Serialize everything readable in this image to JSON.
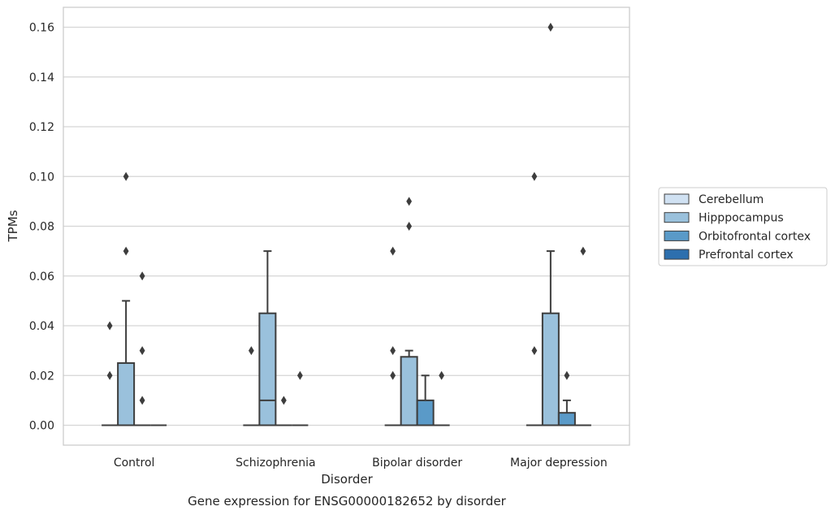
{
  "caption": "Gene expression for ENSG00000182652 by disorder",
  "chart_data": {
    "type": "box",
    "title": "",
    "xlabel": "Disorder",
    "ylabel": "TPMs",
    "ylim": [
      -0.008,
      0.168
    ],
    "yticks": [
      0.0,
      0.02,
      0.04,
      0.06,
      0.08,
      0.1,
      0.12,
      0.14,
      0.16
    ],
    "ytick_labels": [
      "0.00",
      "0.02",
      "0.04",
      "0.06",
      "0.08",
      "0.10",
      "0.12",
      "0.14",
      "0.16"
    ],
    "grid": "horizontal",
    "legend_position": "outside-right",
    "categories": [
      "Control",
      "Schizophrenia",
      "Bipolar disorder",
      "Major depression"
    ],
    "series": [
      {
        "name": "Cerebellum",
        "color": "#d0e1f2",
        "boxes": [
          {
            "q1": 0,
            "median": 0,
            "q3": 0,
            "whisker_low": 0,
            "whisker_high": 0,
            "outliers": [
              0.02,
              0.04
            ]
          },
          {
            "q1": 0,
            "median": 0,
            "q3": 0,
            "whisker_low": 0,
            "whisker_high": 0,
            "outliers": [
              0.03
            ]
          },
          {
            "q1": 0,
            "median": 0,
            "q3": 0,
            "whisker_low": 0,
            "whisker_high": 0,
            "outliers": [
              0.02,
              0.03,
              0.07
            ]
          },
          {
            "q1": 0,
            "median": 0,
            "q3": 0,
            "whisker_low": 0,
            "whisker_high": 0,
            "outliers": [
              0.03,
              0.1
            ]
          }
        ]
      },
      {
        "name": "Hipppocampus",
        "color": "#9ac1dc",
        "boxes": [
          {
            "q1": 0,
            "median": 0,
            "q3": 0.025,
            "whisker_low": 0,
            "whisker_high": 0.05,
            "outliers": [
              0.07,
              0.1
            ]
          },
          {
            "q1": 0,
            "median": 0.01,
            "q3": 0.045,
            "whisker_low": 0,
            "whisker_high": 0.07,
            "outliers": []
          },
          {
            "q1": 0,
            "median": 0,
            "q3": 0.0275,
            "whisker_low": 0,
            "whisker_high": 0.03,
            "outliers": [
              0.08,
              0.09
            ]
          },
          {
            "q1": 0,
            "median": 0,
            "q3": 0.045,
            "whisker_low": 0,
            "whisker_high": 0.07,
            "outliers": [
              0.16
            ]
          }
        ]
      },
      {
        "name": "Orbitofrontal cortex",
        "color": "#5a9ac8",
        "boxes": [
          {
            "q1": 0,
            "median": 0,
            "q3": 0,
            "whisker_low": 0,
            "whisker_high": 0,
            "outliers": [
              0.01,
              0.03,
              0.06
            ]
          },
          {
            "q1": 0,
            "median": 0,
            "q3": 0,
            "whisker_low": 0,
            "whisker_high": 0,
            "outliers": [
              0.01
            ]
          },
          {
            "q1": 0,
            "median": 0,
            "q3": 0.01,
            "whisker_low": 0,
            "whisker_high": 0.02,
            "outliers": []
          },
          {
            "q1": 0,
            "median": 0,
            "q3": 0.005,
            "whisker_low": 0,
            "whisker_high": 0.01,
            "outliers": [
              0.02
            ]
          }
        ]
      },
      {
        "name": "Prefrontal cortex",
        "color": "#2d6fae",
        "boxes": [
          {
            "q1": 0,
            "median": 0,
            "q3": 0,
            "whisker_low": 0,
            "whisker_high": 0,
            "outliers": []
          },
          {
            "q1": 0,
            "median": 0,
            "q3": 0,
            "whisker_low": 0,
            "whisker_high": 0,
            "outliers": [
              0.02
            ]
          },
          {
            "q1": 0,
            "median": 0,
            "q3": 0,
            "whisker_low": 0,
            "whisker_high": 0,
            "outliers": [
              0.02
            ]
          },
          {
            "q1": 0,
            "median": 0,
            "q3": 0,
            "whisker_low": 0,
            "whisker_high": 0,
            "outliers": [
              0.07
            ]
          }
        ]
      }
    ]
  }
}
